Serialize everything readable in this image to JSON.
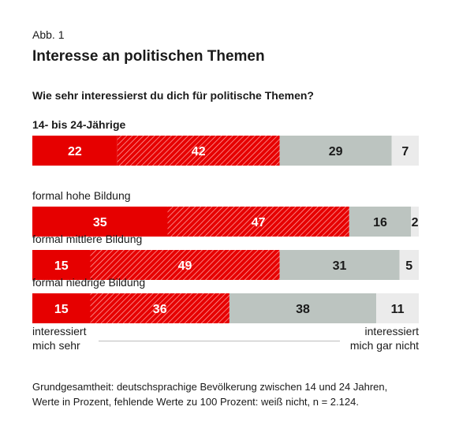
{
  "figure": {
    "label": "Abb. 1",
    "title": "Interesse an politischen Themen",
    "question": "Wie sehr interessierst du dich für politische Themen?"
  },
  "colors": {
    "sehr": "#e60000",
    "eher": "#e60000",
    "eher_nicht": "#bcc4c0",
    "gar_nicht": "#ebebeb"
  },
  "chart_data": {
    "type": "bar",
    "orientation": "horizontal",
    "stacked": true,
    "normalized": true,
    "categories": [
      "14- bis 24-Jährige",
      "formal hohe Bildung",
      "formal mittlere Bildung",
      "formal niedrige Bildung"
    ],
    "series": [
      {
        "values": [
          22,
          35,
          15,
          15
        ],
        "fill": "solid-red"
      },
      {
        "values": [
          42,
          47,
          49,
          36
        ],
        "fill": "hatched-red"
      },
      {
        "values": [
          29,
          16,
          31,
          38
        ],
        "fill": "gray"
      },
      {
        "values": [
          7,
          2,
          5,
          11
        ],
        "fill": "light-gray"
      }
    ],
    "scale_labels": {
      "left": [
        "interessiert",
        "mich sehr"
      ],
      "right": [
        "interessiert",
        "mich gar nicht"
      ]
    }
  },
  "footnote": {
    "line1": "Grundgesamtheit: deutschsprachige Bevölkerung zwischen 14 und 24 Jahren,",
    "line2": "Werte in Prozent, fehlende Werte zu 100 Prozent: weiß nicht, n = 2.124."
  }
}
